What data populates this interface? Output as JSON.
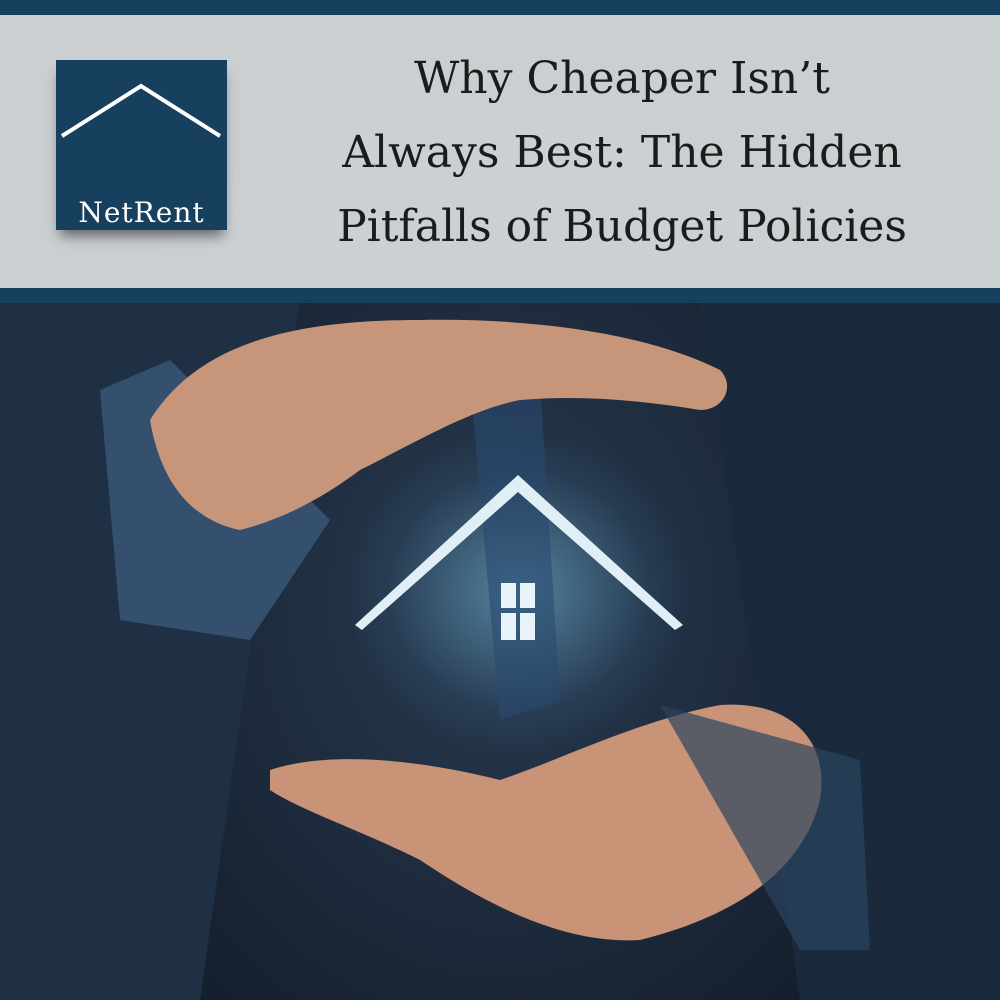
{
  "brand": {
    "logo_text": "NetRent",
    "color": "#17405f",
    "logo_icon": "house-roof-icon"
  },
  "header": {
    "title_lines": [
      "Why Cheaper Isn’t",
      "Always Best: The Hidden",
      "Pitfalls of Budget Policies"
    ]
  },
  "photo": {
    "icon": "glowing-house-icon"
  }
}
